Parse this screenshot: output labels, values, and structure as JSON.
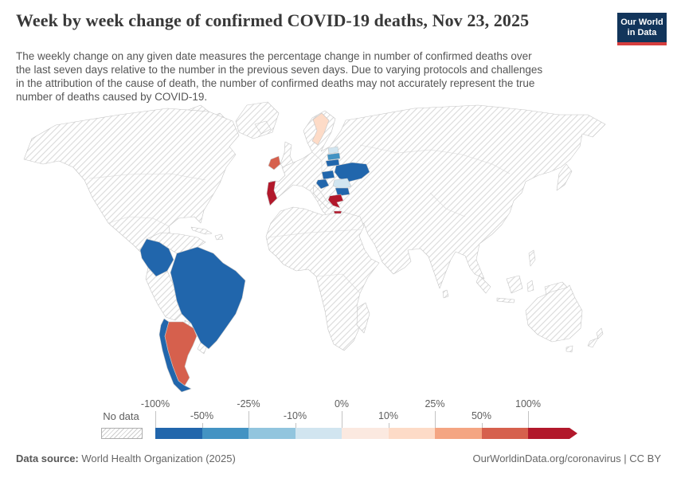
{
  "header": {
    "title": "Week by week change of confirmed COVID-19 deaths, Nov 23, 2025",
    "subtitle_lines": [
      "The weekly change on any given date measures the percentage change in number of confirmed deaths over",
      "the last seven days relative to the number in the previous seven days. Due to varying protocols and challenges",
      "in the attribution of the cause of death, the number of confirmed deaths may not accurately represent the true",
      "number of deaths caused by COVID-19."
    ],
    "logo": {
      "line1": "Our World",
      "line2": "in Data",
      "bg_color": "#12355b",
      "accent_color": "#d63e3e"
    }
  },
  "chart_data": {
    "type": "choropleth-map",
    "title": "Week by week change of confirmed COVID-19 deaths",
    "date": "Nov 23, 2025",
    "unit": "% change week over week",
    "projection": "world",
    "legend": {
      "no_data_label": "No data",
      "no_data_pattern": "diagonal-hatch",
      "ticks": [
        "-100%",
        "-50%",
        "-25%",
        "-10%",
        "0%",
        "10%",
        "25%",
        "50%",
        "100%"
      ],
      "bin_colors": [
        "#2166ac",
        "#4393c3",
        "#92c5de",
        "#d1e5f0",
        "#fbe9e0",
        "#fddbc7",
        "#f4a582",
        "#d6604d",
        "#b2182b"
      ],
      "arrow_end": "open-ended above 100%"
    },
    "countries": [
      {
        "name": "Brazil",
        "bin": "-100% to -50%",
        "color": "#2166ac"
      },
      {
        "name": "Colombia",
        "bin": "-100% to -50%",
        "color": "#2166ac"
      },
      {
        "name": "Chile",
        "bin": "-100% to -50%",
        "color": "#2166ac"
      },
      {
        "name": "Argentina",
        "bin": "50% to 100%",
        "color": "#d6604d"
      },
      {
        "name": "Ireland",
        "bin": "50% to 100%",
        "color": "#d6604d"
      },
      {
        "name": "Portugal",
        "bin": "over 100%",
        "color": "#b2182b"
      },
      {
        "name": "Greece",
        "bin": "over 100%",
        "color": "#b2182b"
      },
      {
        "name": "Sweden",
        "bin": "10% to 25%",
        "color": "#fddbc7"
      },
      {
        "name": "Estonia",
        "bin": "-10% to 0%",
        "color": "#d1e5f0"
      },
      {
        "name": "Latvia",
        "bin": "-50% to -25%",
        "color": "#4393c3"
      },
      {
        "name": "Lithuania",
        "bin": "-100% to -50%",
        "color": "#2166ac"
      },
      {
        "name": "Ukraine",
        "bin": "-100% to -50%",
        "color": "#2166ac"
      },
      {
        "name": "Hungary",
        "bin": "-100% to -50%",
        "color": "#2166ac"
      },
      {
        "name": "Croatia",
        "bin": "-100% to -50%",
        "color": "#2166ac"
      },
      {
        "name": "Romania",
        "bin": "-10% to 0%",
        "color": "#d1e5f0"
      },
      {
        "name": "Bulgaria",
        "bin": "-100% to -50%",
        "color": "#2166ac"
      }
    ],
    "all_other_regions": "No data"
  },
  "footer": {
    "datasource_label": "Data source:",
    "datasource_value": " World Health Organization (2025)",
    "attribution": "OurWorldinData.org/coronavirus | CC BY"
  }
}
